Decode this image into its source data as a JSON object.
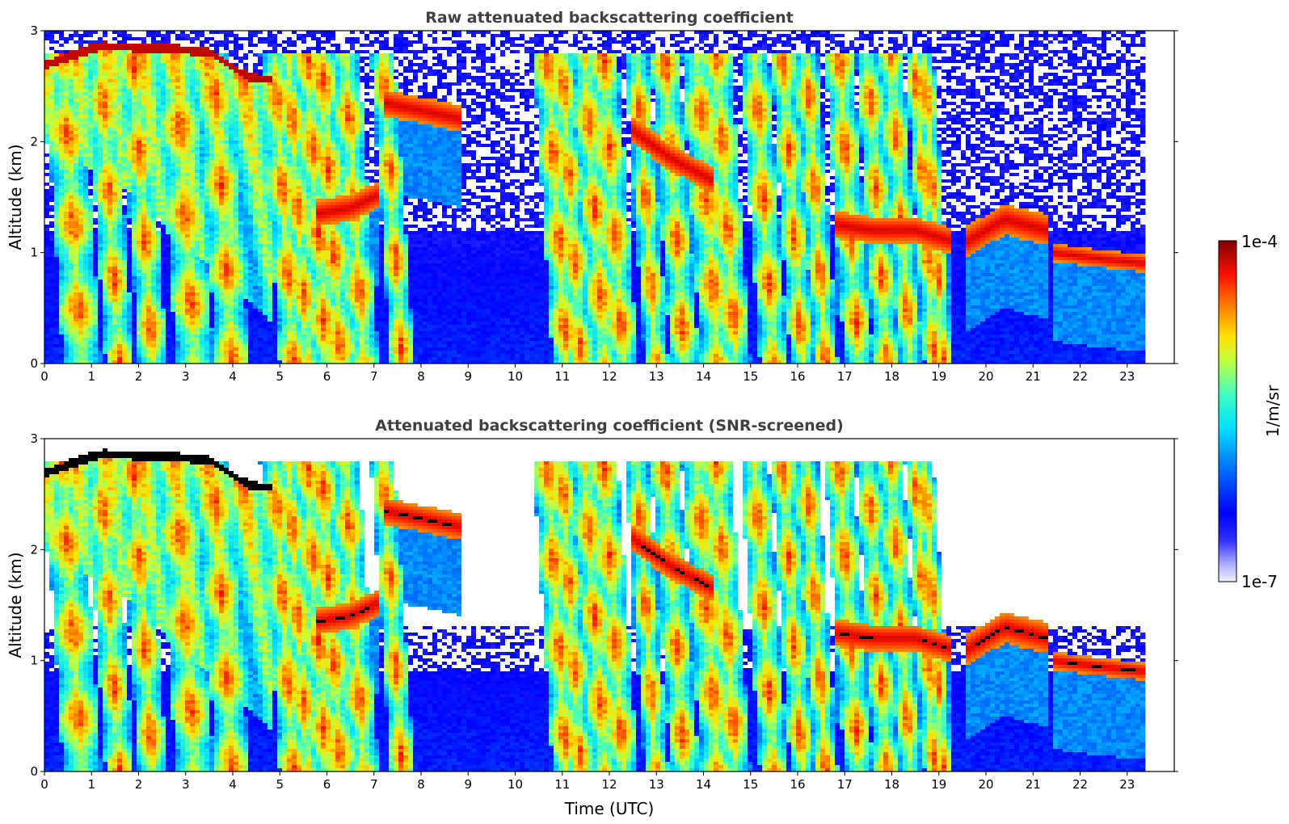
{
  "chart_data": [
    {
      "type": "heatmap",
      "title": "Raw attenuated backscattering coefficient",
      "xlabel": "",
      "ylabel": "Altitude (km)",
      "xlim": [
        0,
        24
      ],
      "ylim": [
        0,
        3
      ],
      "x_ticks": [
        "0",
        "1",
        "2",
        "3",
        "4",
        "5",
        "6",
        "7",
        "8",
        "9",
        "10",
        "11",
        "12",
        "13",
        "14",
        "15",
        "16",
        "17",
        "18",
        "19",
        "20",
        "21",
        "22",
        "23"
      ],
      "y_ticks": [
        "0",
        "1",
        "2",
        "3"
      ],
      "data_end_time": 23.4,
      "grid": false,
      "screened": false,
      "features": [
        {
          "kind": "cloud_top",
          "from": 0,
          "to": 4.5,
          "altitude": [
            2.7,
            2.9,
            2.85,
            2.6
          ]
        },
        {
          "kind": "cloud_layer",
          "from": 7.2,
          "to": 8.9,
          "altitude": [
            2.35,
            2.2
          ]
        },
        {
          "kind": "cloud_layer",
          "from": 12.5,
          "to": 14.2,
          "altitude": [
            2.1,
            1.7
          ]
        },
        {
          "kind": "cloud_layer",
          "from": 16.8,
          "to": 19.3,
          "altitude": [
            1.25,
            1.1
          ]
        },
        {
          "kind": "cloud_layer",
          "from": 19.6,
          "to": 21.3,
          "altitude": [
            1.15,
            1.3
          ]
        },
        {
          "kind": "cloud_layer",
          "from": 21.4,
          "to": 23.4,
          "altitude": [
            0.95,
            0.9
          ]
        }
      ]
    },
    {
      "type": "heatmap",
      "title": "Attenuated backscattering coefficient (SNR-screened)",
      "xlabel": "Time (UTC)",
      "ylabel": "Altitude (km)",
      "xlim": [
        0,
        24
      ],
      "ylim": [
        0,
        3
      ],
      "x_ticks": [
        "0",
        "1",
        "2",
        "3",
        "4",
        "5",
        "6",
        "7",
        "8",
        "9",
        "10",
        "11",
        "12",
        "13",
        "14",
        "15",
        "16",
        "17",
        "18",
        "19",
        "20",
        "21",
        "22",
        "23"
      ],
      "y_ticks": [
        "0",
        "1",
        "2",
        "3"
      ],
      "data_end_time": 23.4,
      "grid": false,
      "screened": true
    }
  ],
  "colorbar": {
    "label": "1/m/sr",
    "max_label": "1e-4",
    "min_label": "1e-7",
    "scale": "log",
    "colormap": "jet",
    "colors": [
      "#f0f0ff",
      "#c8c8ff",
      "#9090ff",
      "#4040ff",
      "#0000ff",
      "#0060ff",
      "#00c0ff",
      "#20ffe0",
      "#80ff80",
      "#e0ff20",
      "#ffc000",
      "#ff6000",
      "#ff0000",
      "#c00000",
      "#800000"
    ]
  }
}
